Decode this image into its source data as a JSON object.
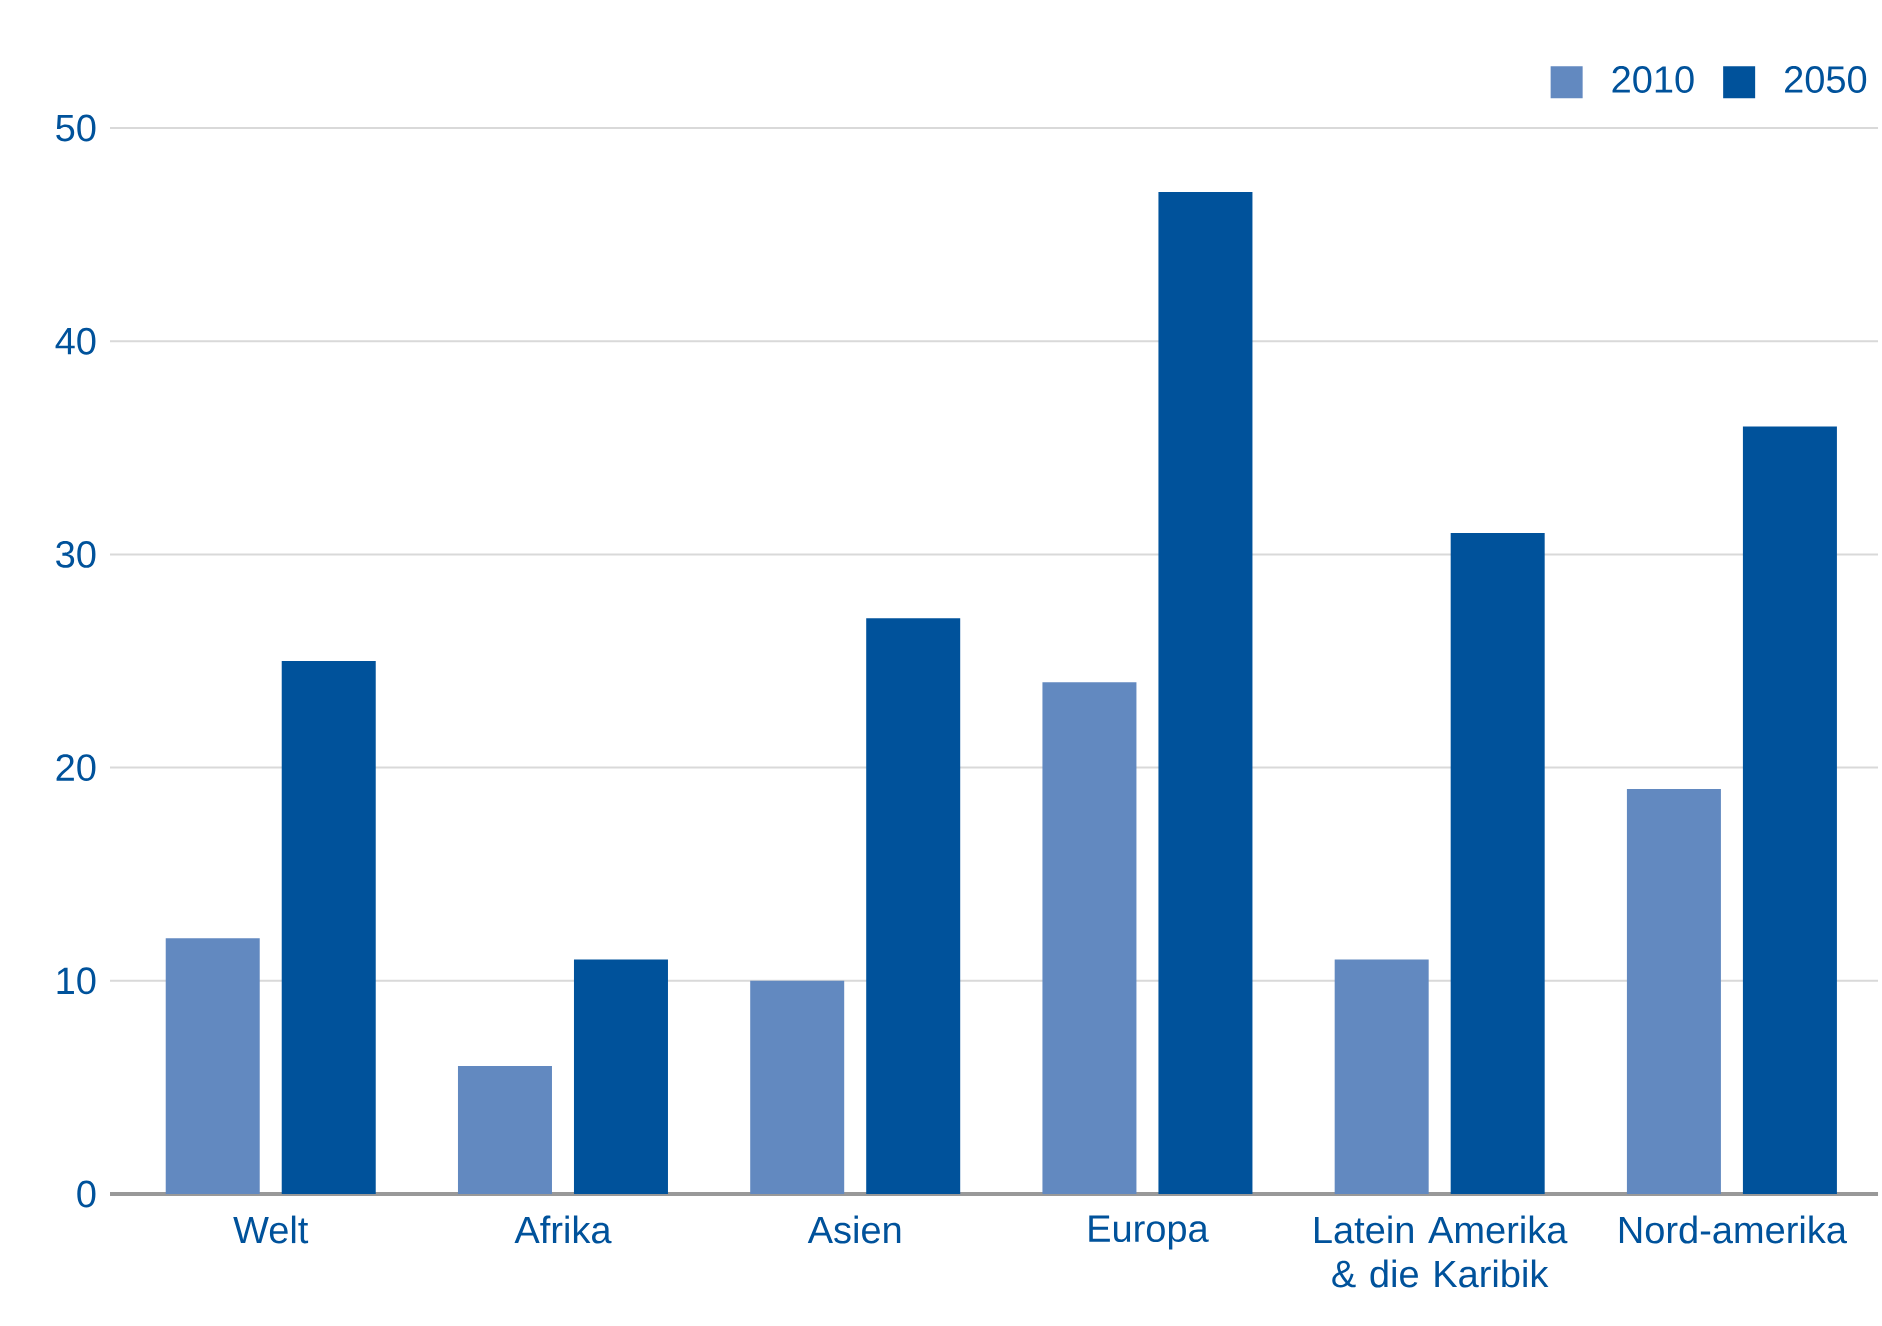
{
  "chart_data": {
    "type": "bar",
    "categories": [
      "Welt",
      "Afrika",
      "Asien",
      "Europa",
      "Latein Amerika & die Karibik",
      "Nord-amerika"
    ],
    "series": [
      {
        "name": "2010",
        "color": "#6289c0",
        "values": [
          12,
          6,
          10,
          24,
          11,
          19
        ]
      },
      {
        "name": "2050",
        "color": "#00529b",
        "values": [
          25,
          11,
          27,
          47,
          31,
          36
        ]
      }
    ],
    "ylim": [
      0,
      50
    ],
    "yticks": [
      0,
      10,
      20,
      30,
      40,
      50
    ],
    "grid": "y",
    "legend": "top right"
  }
}
